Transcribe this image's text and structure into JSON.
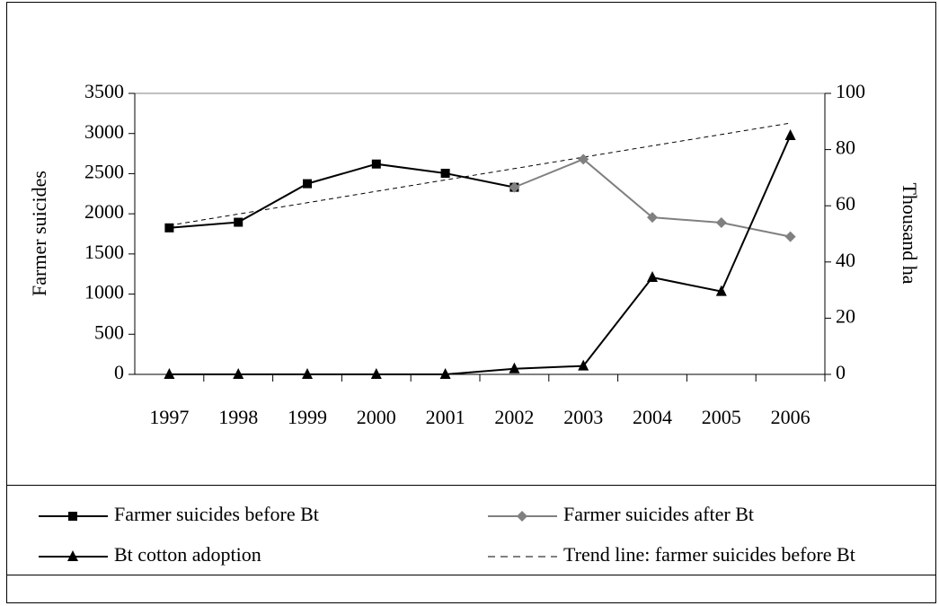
{
  "chart_data": {
    "type": "line",
    "ylabel": "Farmer suicides",
    "y2label": "Thousand ha",
    "categories": [
      "1997",
      "1998",
      "1999",
      "2000",
      "2001",
      "2002",
      "2003",
      "2004",
      "2005",
      "2006"
    ],
    "ylim": [
      0,
      3500
    ],
    "yticks": [
      0,
      500,
      1000,
      1500,
      2000,
      2500,
      3000,
      3500
    ],
    "y2lim": [
      0,
      100
    ],
    "y2ticks": [
      0,
      20,
      40,
      60,
      80,
      100
    ],
    "grid": false,
    "series": [
      {
        "name": "Farmer suicides before Bt",
        "color": "#000000",
        "marker": "square",
        "dashed": false,
        "values": [
          1825,
          1895,
          2375,
          2620,
          2505,
          2330,
          null,
          null,
          null,
          null
        ]
      },
      {
        "name": "Farmer suicides after Bt",
        "color": "#808080",
        "marker": "diamond",
        "dashed": false,
        "values": [
          null,
          null,
          null,
          null,
          null,
          2330,
          2680,
          1955,
          1890,
          1715
        ]
      },
      {
        "name": "Bt cotton adoption",
        "color": "#000000",
        "marker": "triangle",
        "dashed": false,
        "axis": "y2",
        "values": [
          0,
          0,
          0,
          0,
          0,
          2,
          3,
          34.5,
          29.5,
          85
        ]
      },
      {
        "name": "Trend line: farmer suicides before Bt",
        "color": "#000000",
        "marker": "none",
        "dashed": true,
        "values": [
          1855,
          1997,
          2138,
          2280,
          2422,
          2563,
          2705,
          2847,
          2988,
          3130
        ]
      }
    ]
  }
}
